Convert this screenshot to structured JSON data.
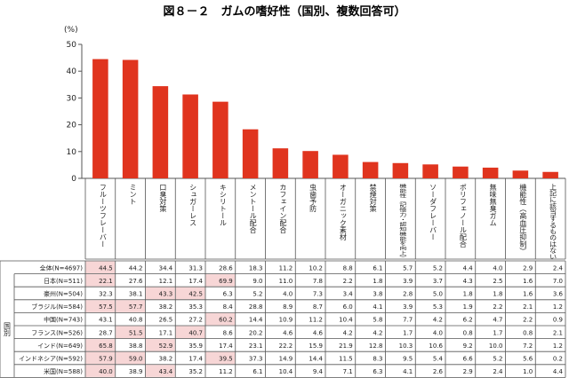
{
  "chart_data": {
    "type": "bar",
    "title": "図８－２　ガムの嗜好性（国別、複数回答可）",
    "ylabel": "(%)",
    "ylim": [
      0,
      50
    ],
    "yticks": [
      0,
      10,
      20,
      30,
      40,
      50
    ],
    "categories": [
      "フルーツフレーバー",
      "ミント",
      "口臭対策",
      "シュガーレス",
      "キシリトール",
      "メントール配合",
      "カフェイン配合",
      "虫歯予防",
      "オーガニック素材",
      "禁煙対策",
      "機能性（記憶力・認知機能を向上）",
      "ソーダフレーバー",
      "ポリフェノール配合",
      "無味無臭ガム",
      "機能性（高血圧抑制）",
      "上記に該当するものはない"
    ],
    "series": [
      {
        "name": "全体(N=4697)",
        "values": [
          44.5,
          44.2,
          34.4,
          31.3,
          28.6,
          18.3,
          11.2,
          10.2,
          8.8,
          6.1,
          5.7,
          5.2,
          4.4,
          4.0,
          2.9,
          2.4
        ]
      }
    ],
    "bar_color": "#e0341e",
    "highlight_color": "#f7d6d6",
    "side_label": "国別",
    "table_rows": [
      {
        "label": "全体(N=4697)",
        "values": [
          "44.5",
          "44.2",
          "34.4",
          "31.3",
          "28.6",
          "18.3",
          "11.2",
          "10.2",
          "8.8",
          "6.1",
          "5.7",
          "5.2",
          "4.4",
          "4.0",
          "2.9",
          "2.4"
        ],
        "highlight": [
          true,
          false,
          false,
          false,
          false,
          false,
          false,
          false,
          false,
          false,
          false,
          false,
          false,
          false,
          false,
          false
        ]
      },
      {
        "label": "日本(N=511)",
        "values": [
          "22.1",
          "27.6",
          "12.1",
          "17.4",
          "69.9",
          "9.0",
          "11.0",
          "7.8",
          "2.2",
          "1.8",
          "3.9",
          "3.7",
          "4.3",
          "2.5",
          "1.6",
          "7.0"
        ],
        "highlight": [
          true,
          false,
          false,
          false,
          true,
          false,
          false,
          false,
          false,
          false,
          false,
          false,
          false,
          false,
          false,
          false
        ]
      },
      {
        "label": "豪州(N=504)",
        "values": [
          "32.3",
          "38.1",
          "43.3",
          "42.5",
          "6.3",
          "5.2",
          "4.0",
          "7.3",
          "3.4",
          "3.8",
          "2.8",
          "5.0",
          "1.8",
          "1.8",
          "1.6",
          "3.6"
        ],
        "highlight": [
          false,
          false,
          true,
          true,
          false,
          false,
          false,
          false,
          false,
          false,
          false,
          false,
          false,
          false,
          false,
          false
        ]
      },
      {
        "label": "ブラジル(N=584)",
        "values": [
          "57.5",
          "57.7",
          "38.2",
          "35.3",
          "8.4",
          "28.8",
          "8.9",
          "8.7",
          "6.0",
          "4.1",
          "3.9",
          "5.3",
          "1.9",
          "2.2",
          "2.1",
          "1.2"
        ],
        "highlight": [
          true,
          true,
          false,
          false,
          false,
          false,
          false,
          false,
          false,
          false,
          false,
          false,
          false,
          false,
          false,
          false
        ]
      },
      {
        "label": "中国(N=743)",
        "values": [
          "43.1",
          "40.8",
          "26.5",
          "27.2",
          "60.2",
          "14.4",
          "10.9",
          "11.2",
          "10.4",
          "5.8",
          "7.7",
          "4.2",
          "6.2",
          "4.7",
          "2.2",
          "0.9"
        ],
        "highlight": [
          false,
          false,
          false,
          false,
          true,
          false,
          false,
          false,
          false,
          false,
          false,
          false,
          false,
          false,
          false,
          false
        ]
      },
      {
        "label": "フランス(N=526)",
        "values": [
          "28.7",
          "51.5",
          "17.1",
          "40.7",
          "8.6",
          "20.2",
          "4.6",
          "4.6",
          "4.2",
          "4.2",
          "1.7",
          "4.0",
          "0.8",
          "1.7",
          "0.8",
          "2.1"
        ],
        "highlight": [
          false,
          true,
          false,
          true,
          false,
          false,
          false,
          false,
          false,
          false,
          false,
          false,
          false,
          false,
          false,
          false
        ]
      },
      {
        "label": "インド(N=649)",
        "values": [
          "65.8",
          "38.8",
          "52.9",
          "35.9",
          "17.4",
          "23.1",
          "22.2",
          "15.9",
          "21.9",
          "12.8",
          "10.3",
          "10.6",
          "9.2",
          "10.0",
          "7.2",
          "1.2"
        ],
        "highlight": [
          true,
          false,
          true,
          false,
          false,
          false,
          false,
          false,
          false,
          false,
          false,
          false,
          false,
          false,
          false,
          false
        ]
      },
      {
        "label": "インドネシア(N=592)",
        "values": [
          "57.9",
          "59.0",
          "38.2",
          "17.4",
          "39.5",
          "37.3",
          "14.9",
          "14.4",
          "11.5",
          "8.3",
          "9.5",
          "5.4",
          "6.6",
          "5.2",
          "5.6",
          "0.2"
        ],
        "highlight": [
          true,
          true,
          false,
          false,
          true,
          false,
          false,
          false,
          false,
          false,
          false,
          false,
          false,
          false,
          false,
          false
        ]
      },
      {
        "label": "米国(N=588)",
        "values": [
          "40.0",
          "38.9",
          "43.4",
          "35.2",
          "11.2",
          "6.1",
          "10.4",
          "9.4",
          "7.1",
          "6.3",
          "4.1",
          "2.6",
          "2.9",
          "2.4",
          "1.0",
          "4.4"
        ],
        "highlight": [
          true,
          false,
          true,
          false,
          false,
          false,
          false,
          false,
          false,
          false,
          false,
          false,
          false,
          false,
          false,
          false
        ]
      }
    ]
  }
}
